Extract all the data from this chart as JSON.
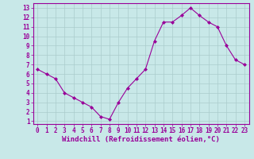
{
  "x": [
    0,
    1,
    2,
    3,
    4,
    5,
    6,
    7,
    8,
    9,
    10,
    11,
    12,
    13,
    14,
    15,
    16,
    17,
    18,
    19,
    20,
    21,
    22,
    23
  ],
  "y": [
    6.5,
    6.0,
    5.5,
    4.0,
    3.5,
    3.0,
    2.5,
    1.5,
    1.2,
    3.0,
    4.5,
    5.5,
    6.5,
    9.5,
    11.5,
    11.5,
    12.2,
    13.0,
    12.2,
    11.5,
    11.0,
    9.0,
    7.5,
    7.0
  ],
  "line_color": "#990099",
  "marker": "D",
  "marker_size": 2,
  "bg_color": "#c8e8e8",
  "grid_color": "#aacccc",
  "xlabel": "Windchill (Refroidissement éolien,°C)",
  "xlim": [
    -0.5,
    23.5
  ],
  "ylim": [
    0.7,
    13.5
  ],
  "xtick_labels": [
    "0",
    "1",
    "2",
    "3",
    "4",
    "5",
    "6",
    "7",
    "8",
    "9",
    "10",
    "11",
    "12",
    "13",
    "14",
    "15",
    "16",
    "17",
    "18",
    "19",
    "20",
    "21",
    "22",
    "23"
  ],
  "ytick_labels": [
    "1",
    "2",
    "3",
    "4",
    "5",
    "6",
    "7",
    "8",
    "9",
    "10",
    "11",
    "12",
    "13"
  ],
  "yticks": [
    1,
    2,
    3,
    4,
    5,
    6,
    7,
    8,
    9,
    10,
    11,
    12,
    13
  ],
  "xticks": [
    0,
    1,
    2,
    3,
    4,
    5,
    6,
    7,
    8,
    9,
    10,
    11,
    12,
    13,
    14,
    15,
    16,
    17,
    18,
    19,
    20,
    21,
    22,
    23
  ],
  "tick_color": "#990099",
  "axis_color": "#990099",
  "font_size": 5.5,
  "xlabel_fontsize": 6.5
}
